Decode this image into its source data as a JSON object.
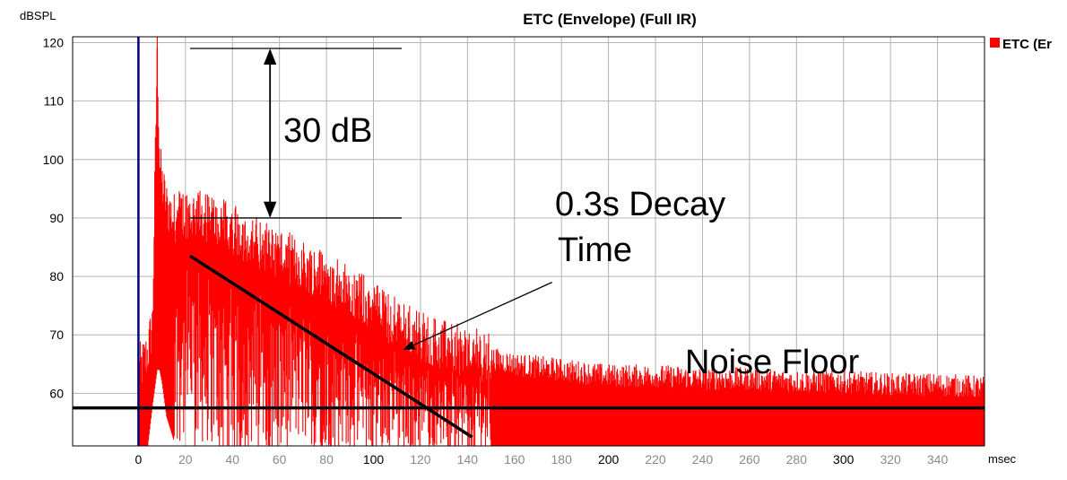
{
  "chart_data": {
    "type": "area",
    "title": "ETC (Envelope) (Full IR)",
    "ylabel": "dBSPL",
    "xlabel": "msec",
    "xlim": [
      -28,
      360
    ],
    "ylim": [
      51,
      121
    ],
    "y_ticks": [
      60,
      70,
      80,
      90,
      100,
      110,
      120
    ],
    "x_ticks": [
      0,
      20,
      40,
      60,
      80,
      100,
      120,
      140,
      160,
      180,
      200,
      220,
      240,
      260,
      280,
      300,
      320,
      340
    ],
    "x_major_ticks": [
      0,
      100,
      200,
      300
    ],
    "grid": true,
    "legend": {
      "placement": "top-right",
      "entries": [
        "ETC (Er"
      ]
    },
    "colors": {
      "series": "#ff0000",
      "time_zero": "#000080",
      "grid": "#b4b4b4",
      "annotation": "#000000"
    },
    "series": [
      {
        "name": "ETC (Er",
        "x": [
          0,
          2,
          4,
          6,
          8,
          9,
          10,
          12,
          15,
          20,
          30,
          40,
          50,
          60,
          70,
          80,
          90,
          100,
          110,
          120,
          130,
          140,
          150,
          160,
          180,
          200,
          220,
          240,
          260,
          280,
          300,
          320,
          340,
          360
        ],
        "upper": [
          64,
          65,
          67,
          72,
          119,
          100,
          96,
          92,
          90,
          91,
          90,
          88,
          86,
          84,
          82,
          80,
          77.5,
          75,
          72,
          70,
          68,
          67,
          66,
          65,
          64,
          63,
          63,
          62.5,
          62.5,
          62,
          62,
          61.5,
          61.5,
          61
        ],
        "lower": [
          51,
          51,
          51,
          58,
          64,
          64,
          62,
          56,
          52,
          51,
          51,
          51,
          51,
          51,
          51,
          51,
          51,
          51,
          51,
          51,
          51,
          51,
          51,
          51,
          51,
          51,
          51,
          51,
          51,
          51,
          51,
          51,
          51,
          51
        ]
      }
    ],
    "annotations": {
      "range_label": "30 dB",
      "range_top_y": 119,
      "range_bottom_y": 90,
      "range_x": [
        22,
        112
      ],
      "arrow_x": 56,
      "decay_label_line1": "0.3s Decay",
      "decay_label_line2": "Time",
      "decay_line": {
        "x": [
          22,
          142
        ],
        "y": [
          83.5,
          52.5
        ]
      },
      "decay_pointer": {
        "from": [
          176,
          79
        ],
        "to": [
          113,
          67.5
        ]
      },
      "noise_floor_label": "Noise Floor",
      "noise_floor_y": 57.5
    }
  }
}
